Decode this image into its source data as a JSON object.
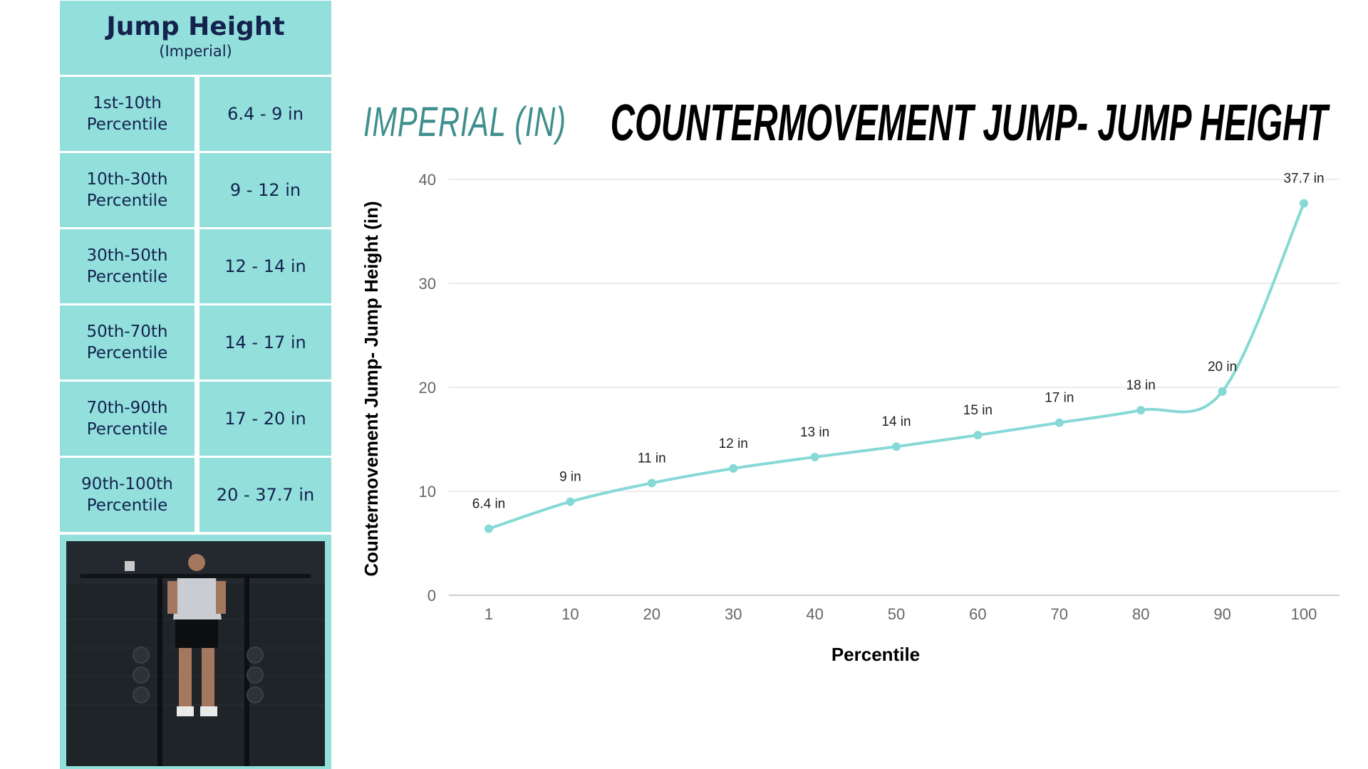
{
  "table": {
    "title": "Jump Height",
    "subtitle": "(Imperial)",
    "rows": [
      {
        "label_line1": "1st-10th",
        "label_line2": "Percentile",
        "range": "6.4 - 9 in"
      },
      {
        "label_line1": "10th-30th",
        "label_line2": "Percentile",
        "range": "9 - 12 in"
      },
      {
        "label_line1": "30th-50th",
        "label_line2": "Percentile",
        "range": "12 - 14 in"
      },
      {
        "label_line1": "50th-70th",
        "label_line2": "Percentile",
        "range": "14 - 17 in"
      },
      {
        "label_line1": "70th-90th",
        "label_line2": "Percentile",
        "range": "17 - 20 in"
      },
      {
        "label_line1": "90th-100th",
        "label_line2": "Percentile",
        "range": "20 - 37.7 in"
      }
    ]
  },
  "unit_heading": "IMPERIAL (IN)",
  "colors": {
    "cell_bg": "#92dfdc",
    "cell_text": "#14224e",
    "line": "#86d9d6",
    "grid": "#e5e5e5",
    "tick_text": "#666666"
  },
  "chart_data": {
    "type": "line",
    "title": "COUNTERMOVEMENT JUMP- JUMP HEIGHT",
    "xlabel": "Percentile",
    "ylabel": "Countermovement Jump- Jump Height (in)",
    "categories": [
      "1",
      "10",
      "20",
      "30",
      "40",
      "50",
      "60",
      "70",
      "80",
      "90",
      "100"
    ],
    "series": [
      {
        "values": [
          6.4,
          9,
          10.8,
          12.2,
          13.3,
          14.3,
          15.4,
          16.6,
          17.8,
          19.6,
          37.7
        ],
        "data_labels": [
          "6.4 in",
          "9 in",
          "11 in",
          "12 in",
          "13 in",
          "14 in",
          "15 in",
          "17 in",
          "18 in",
          "20 in",
          "37.7 in"
        ]
      }
    ],
    "yticks": [
      0,
      10,
      20,
      30,
      40
    ],
    "ylim": [
      0,
      40
    ],
    "grid": true,
    "smooth": true
  }
}
